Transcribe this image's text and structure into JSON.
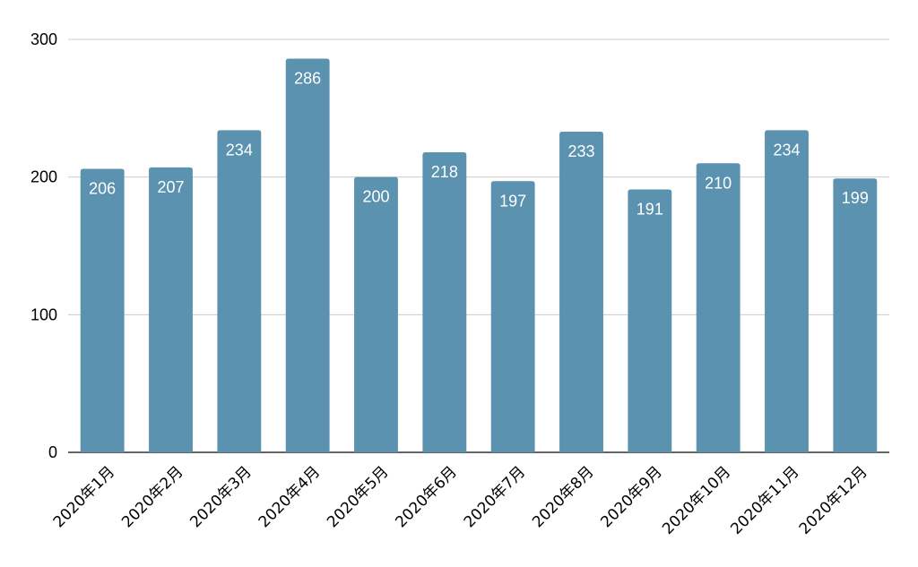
{
  "chart_data": {
    "type": "bar",
    "categories": [
      "2020年1月",
      "2020年2月",
      "2020年3月",
      "2020年4月",
      "2020年5月",
      "2020年6月",
      "2020年7月",
      "2020年8月",
      "2020年9月",
      "2020年10月",
      "2020年11月",
      "2020年12月"
    ],
    "values": [
      206,
      207,
      234,
      286,
      200,
      218,
      197,
      233,
      191,
      210,
      234,
      199
    ],
    "data_labels": [
      "206",
      "207",
      "234",
      "286",
      "200",
      "218",
      "197",
      "233",
      "191",
      "210",
      "234",
      "199"
    ],
    "y_ticks": [
      "0",
      "100",
      "200",
      "300"
    ],
    "ylim": [
      0,
      300
    ],
    "grid": true,
    "legend": "none",
    "title": "",
    "xlabel": "",
    "ylabel": "",
    "colors": {
      "bar": "#5a92af",
      "grid": "#cccccc",
      "axis": "#333333"
    }
  }
}
